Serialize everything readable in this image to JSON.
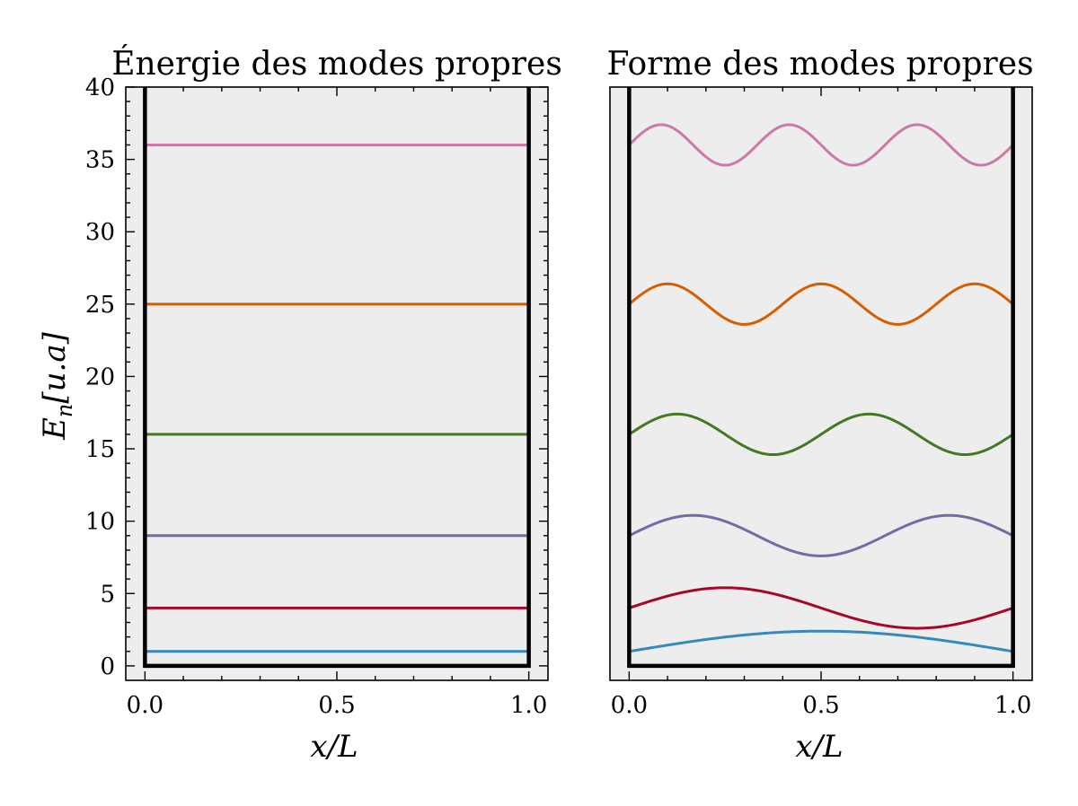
{
  "chart_data": [
    {
      "type": "line",
      "title": "Énergie des modes propres",
      "xlabel": "x/L",
      "ylabel": "E_n[u.a]",
      "xlim": [
        -0.05,
        1.05
      ],
      "ylim": [
        -1,
        40
      ],
      "xticks": [
        "0.0",
        "0.5",
        "1.0"
      ],
      "yticks": [
        "0",
        "5",
        "10",
        "15",
        "20",
        "25",
        "30",
        "35",
        "40"
      ],
      "background": "#ededed",
      "grid": false,
      "well": {
        "x_left": 0,
        "x_right": 1,
        "y_bottom": 0
      },
      "series": [
        {
          "n": 1,
          "energy": 1,
          "color": "#348abd"
        },
        {
          "n": 2,
          "energy": 4,
          "color": "#a60628"
        },
        {
          "n": 3,
          "energy": 9,
          "color": "#7a68a6"
        },
        {
          "n": 4,
          "energy": 16,
          "color": "#467821"
        },
        {
          "n": 5,
          "energy": 25,
          "color": "#d55e00"
        },
        {
          "n": 6,
          "energy": 36,
          "color": "#cc79a7"
        }
      ]
    },
    {
      "type": "line",
      "title": "Forme des modes propres",
      "xlabel": "x/L",
      "xlim": [
        -0.05,
        1.05
      ],
      "ylim": [
        -1,
        40
      ],
      "xticks": [
        "0.0",
        "0.5",
        "1.0"
      ],
      "background": "#ededed",
      "grid": false,
      "well": {
        "x_left": 0,
        "x_right": 1,
        "y_bottom": 0
      },
      "series": [
        {
          "n": 1,
          "offset": 1,
          "amplitude": 1.4,
          "color": "#348abd"
        },
        {
          "n": 2,
          "offset": 4,
          "amplitude": 1.4,
          "color": "#a60628"
        },
        {
          "n": 3,
          "offset": 9,
          "amplitude": 1.4,
          "color": "#7a68a6"
        },
        {
          "n": 4,
          "offset": 16,
          "amplitude": 1.4,
          "color": "#467821"
        },
        {
          "n": 5,
          "offset": 25,
          "amplitude": 1.4,
          "color": "#d55e00"
        },
        {
          "n": 6,
          "offset": 36,
          "amplitude": 1.4,
          "color": "#cc79a7"
        }
      ]
    }
  ]
}
